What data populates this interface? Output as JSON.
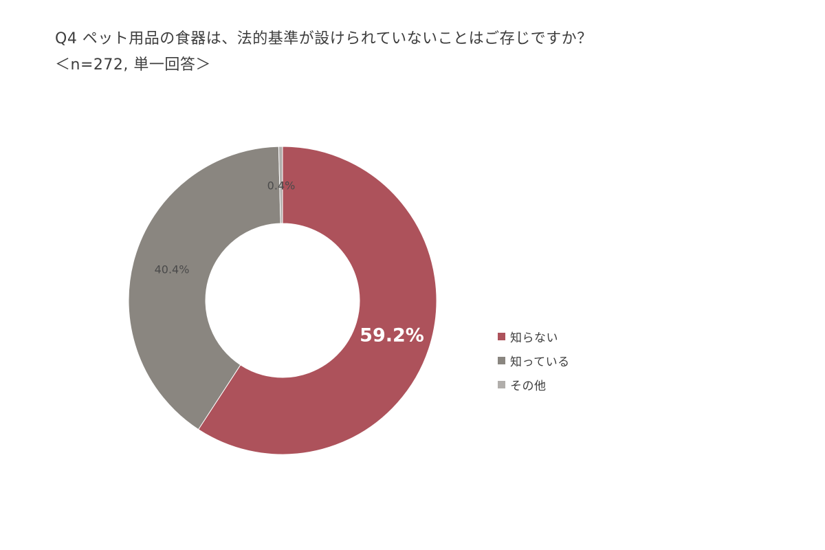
{
  "title": {
    "line1": "Q4 ペット用品の食器は、法的基準が設けられていないことはご存じですか？",
    "line2": "＜n=272, 単一回答＞"
  },
  "chart_data": {
    "type": "pie",
    "donut": true,
    "start": "top",
    "direction": "clockwise",
    "legend_position": "right",
    "slices": [
      {
        "label": "知らない",
        "value": 59.2,
        "display": "59.2%",
        "color": "#ad525b"
      },
      {
        "label": "知っている",
        "value": 40.4,
        "display": "40.4%",
        "color": "#8a8680"
      },
      {
        "label": "その他",
        "value": 0.4,
        "display": "0.4%",
        "color": "#b1aeab"
      }
    ]
  }
}
